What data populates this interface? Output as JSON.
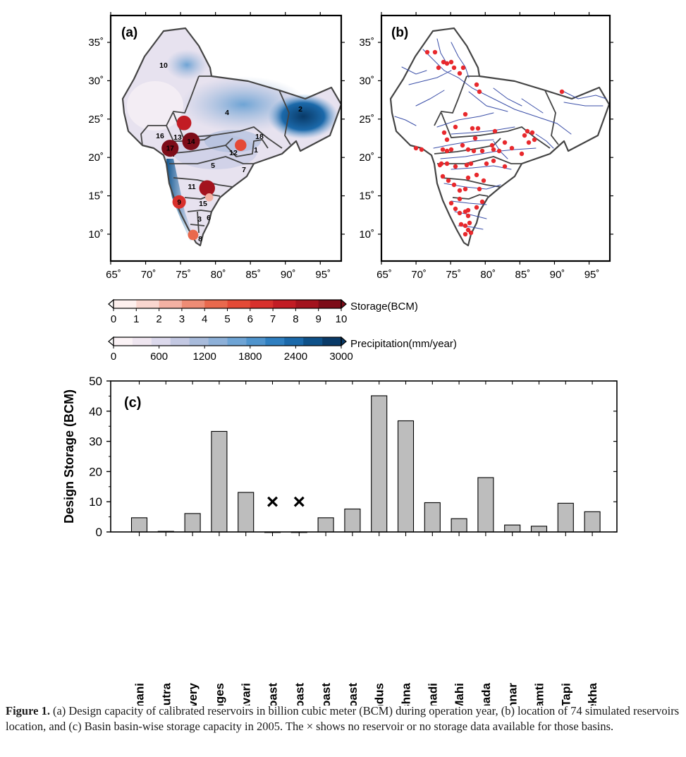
{
  "figure": {
    "panel_a": {
      "label": "(a)",
      "x_ticks": [
        "65˚",
        "70˚",
        "75˚",
        "80˚",
        "85˚",
        "90˚",
        "95˚"
      ],
      "y_ticks": [
        "10˚",
        "15˚",
        "20˚",
        "25˚",
        "30˚",
        "35˚"
      ],
      "basin_numbers": [
        "1",
        "2",
        "3",
        "4",
        "5",
        "6",
        "7",
        "8",
        "9",
        "10",
        "11",
        "12",
        "13",
        "14",
        "15",
        "16",
        "17",
        "18"
      ],
      "reservoirs": [
        {
          "id": "17",
          "lon": 73.5,
          "lat": 21.2,
          "storage": 9.5
        },
        {
          "id": "14",
          "lon": 76.5,
          "lat": 22.1,
          "storage": 10
        },
        {
          "id": "",
          "lon": 75.5,
          "lat": 24.5,
          "storage": 7.5
        },
        {
          "id": "",
          "lon": 78.8,
          "lat": 16.0,
          "storage": 8.5
        },
        {
          "id": "9",
          "lon": 74.8,
          "lat": 14.2,
          "storage": 6.5
        },
        {
          "id": "",
          "lon": 83.6,
          "lat": 21.6,
          "storage": 5
        },
        {
          "id": "",
          "lon": 79.1,
          "lat": 14.8,
          "storage": 2
        },
        {
          "id": "",
          "lon": 76.8,
          "lat": 9.9,
          "storage": 4
        }
      ]
    },
    "panel_b": {
      "label": "(b)",
      "x_ticks": [
        "65˚",
        "70˚",
        "75˚",
        "80˚",
        "85˚",
        "90˚",
        "95˚"
      ],
      "y_ticks": [
        "10˚",
        "15˚",
        "20˚",
        "25˚",
        "30˚",
        "35˚"
      ]
    },
    "storage_colorbar": {
      "title": "Storage(BCM)",
      "ticks": [
        "0",
        "1",
        "2",
        "3",
        "4",
        "5",
        "6",
        "7",
        "8",
        "9",
        "10"
      ],
      "colors": [
        "#fdf0ee",
        "#f9d6cf",
        "#f3b1a3",
        "#ee8c75",
        "#e9694d",
        "#e44a36",
        "#d8302c",
        "#c21c24",
        "#a3131e",
        "#7d0c18"
      ]
    },
    "precip_colorbar": {
      "title": "Precipitation(mm/year)",
      "ticks": [
        "0",
        "600",
        "1200",
        "1800",
        "2400",
        "3000"
      ],
      "colors": [
        "#fbf3f6",
        "#efe6f0",
        "#dcd9ec",
        "#c3c8e2",
        "#a8bbdb",
        "#8db0d8",
        "#6ea4d5",
        "#4f94cd",
        "#2f7fc0",
        "#1b69aa",
        "#0e5189",
        "#093a68"
      ]
    }
  },
  "chart_data": {
    "type": "bar",
    "panel_label": "(c)",
    "ylabel": "Design Storage (BCM)",
    "ylim": [
      0,
      50
    ],
    "yticks": [
      "0",
      "10",
      "20",
      "30",
      "40",
      "50"
    ],
    "categories": [
      "Brahmani",
      "Brahmaputra",
      "Cauvery",
      "Ganges",
      "Godavari",
      "East_Coast",
      "North_East_Coast",
      "South_Coast",
      "West_Coast",
      "Indus",
      "Krishna",
      "Mahanadi",
      "Mahi",
      "Narmada",
      "Pennar",
      "Sabaramti",
      "Tapi",
      "Subarnarekha"
    ],
    "values": [
      4.7,
      0.2,
      6.1,
      33.3,
      13.1,
      0,
      0,
      4.7,
      7.6,
      45.1,
      36.8,
      9.7,
      4.4,
      18.0,
      2.3,
      1.9,
      9.5,
      6.7
    ],
    "no_data_marker": "×",
    "no_data_categories": [
      "East_Coast",
      "North_East_Coast"
    ],
    "no_data_marker_value": 10,
    "bar_color": "#bdbdbd"
  },
  "caption": {
    "label": "Figure 1.",
    "text": "(a) Design capacity of calibrated reservoirs in billion cubic meter (BCM) during operation year, (b) location of 74 simulated reservoirs location, and (c) Basin basin-wise storage capacity in 2005. The × shows no reservoir or no storage data available for those basins."
  }
}
